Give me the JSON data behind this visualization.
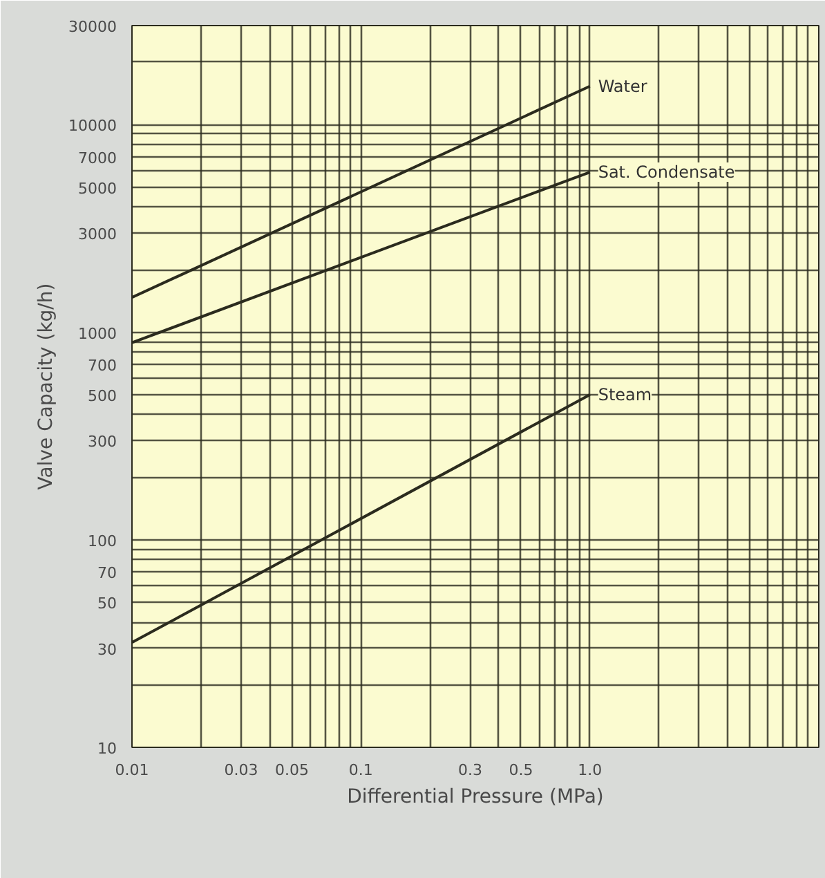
{
  "chart_data": {
    "type": "line",
    "xlabel": "Differential Pressure (MPa)",
    "ylabel": "Valve Capacity (kg/h)",
    "log": "xy",
    "grid": true,
    "marker": "none",
    "line_style": "solid",
    "xlim": [
      0.01,
      10
    ],
    "ylim": [
      10,
      30000
    ],
    "xticks": [
      0.01,
      {
        "value": 0.02,
        "label": null
      },
      0.03,
      {
        "value": 0.04,
        "label": null
      },
      0.05,
      {
        "value": 0.06,
        "label": null
      },
      {
        "value": 0.07,
        "label": null
      },
      {
        "value": 0.08,
        "label": null
      },
      {
        "value": 0.09,
        "label": null
      },
      0.1,
      {
        "value": 0.2,
        "label": null
      },
      0.3,
      {
        "value": 0.4,
        "label": null
      },
      0.5,
      {
        "value": 0.6,
        "label": null
      },
      {
        "value": 0.7,
        "label": null
      },
      {
        "value": 0.8,
        "label": null
      },
      {
        "value": 0.9,
        "label": null
      },
      {
        "value": 1,
        "label": "1.0"
      },
      {
        "value": 2,
        "label": null
      },
      {
        "value": 3,
        "label": null
      },
      {
        "value": 4,
        "label": null
      },
      {
        "value": 5,
        "label": null
      },
      {
        "value": 6,
        "label": null
      },
      {
        "value": 7,
        "label": null
      },
      {
        "value": 8,
        "label": null
      },
      {
        "value": 9,
        "label": null
      },
      {
        "value": 10,
        "label": null
      }
    ],
    "yticks": [
      10,
      {
        "value": 20,
        "label": null
      },
      30,
      {
        "value": 40,
        "label": null
      },
      50,
      {
        "value": 60,
        "label": null
      },
      70,
      {
        "value": 80,
        "label": null
      },
      {
        "value": 90,
        "label": null
      },
      100,
      {
        "value": 200,
        "label": null
      },
      300,
      {
        "value": 400,
        "label": null
      },
      500,
      {
        "value": 600,
        "label": null
      },
      700,
      {
        "value": 800,
        "label": null
      },
      {
        "value": 900,
        "label": null
      },
      1000,
      {
        "value": 2000,
        "label": null
      },
      3000,
      {
        "value": 4000,
        "label": null
      },
      5000,
      {
        "value": 6000,
        "label": null
      },
      7000,
      {
        "value": 8000,
        "label": null
      },
      {
        "value": 9000,
        "label": null
      },
      10000,
      {
        "value": 20000,
        "label": null
      },
      30000
    ],
    "x": [
      0.01,
      1
    ],
    "series": [
      {
        "name": "Water",
        "color": "#2b2b1e",
        "values": [
          1470,
          15300
        ]
      },
      {
        "name": "Sat. Condensate",
        "color": "#2b2b1e",
        "values": [
          890,
          5900
        ]
      },
      {
        "name": "Steam",
        "color": "#2b2b1e",
        "values": [
          32,
          500
        ]
      }
    ]
  }
}
